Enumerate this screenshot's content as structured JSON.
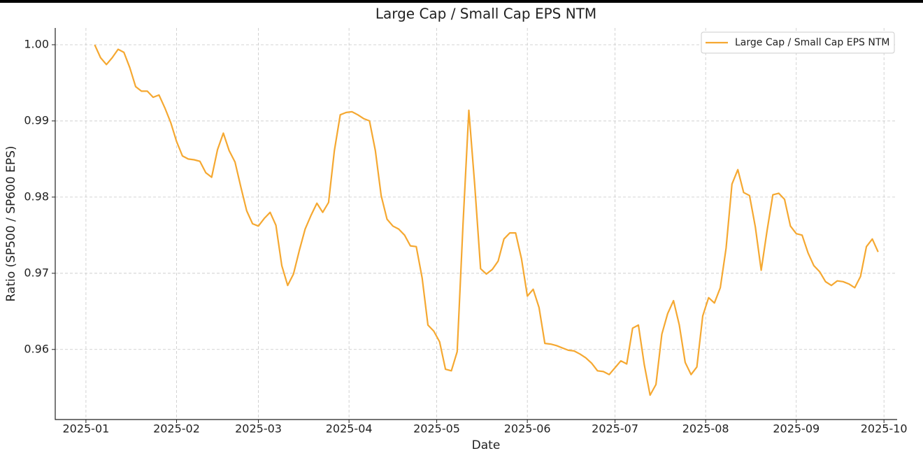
{
  "chart_data": {
    "type": "line",
    "title": "Large Cap / Small Cap EPS NTM",
    "x_label": "Date",
    "y_label": "Ratio (SP500 / SP600 EPS)",
    "x": [
      3,
      5,
      7,
      9,
      11,
      13,
      15,
      17,
      19,
      21,
      23,
      25,
      27,
      29,
      31,
      33,
      35,
      37,
      39,
      41,
      43,
      45,
      47,
      49,
      51,
      53,
      55,
      57,
      59,
      61,
      63,
      65,
      67,
      69,
      71,
      73,
      75,
      77,
      79,
      81,
      83,
      85,
      87,
      89,
      91,
      93,
      95,
      97,
      99,
      101,
      103,
      105,
      107,
      109,
      111,
      113,
      115,
      117,
      119,
      121,
      123,
      125,
      127,
      129,
      131,
      133,
      135,
      137,
      139,
      141,
      143,
      145,
      147,
      149,
      151,
      153,
      155,
      157,
      159,
      161,
      163,
      165,
      167,
      169,
      171,
      173,
      175,
      177,
      179,
      181,
      183,
      185,
      187,
      189,
      191,
      193,
      195,
      197,
      199,
      201,
      203,
      205,
      207,
      209,
      211,
      213,
      215,
      217,
      219,
      221,
      223,
      225,
      227,
      229,
      231,
      233,
      235,
      237,
      239,
      241,
      243,
      245,
      247,
      249,
      251,
      253,
      255,
      257,
      259,
      261,
      263,
      265,
      267,
      269,
      271
    ],
    "series": [
      {
        "name": "Large Cap / Small Cap EPS NTM",
        "color": "#f5a831",
        "values": [
          1.0,
          0.9983,
          0.9974,
          0.9983,
          0.9994,
          0.999,
          0.997,
          0.9945,
          0.9939,
          0.9939,
          0.9931,
          0.9934,
          0.9917,
          0.9898,
          0.9873,
          0.9854,
          0.985,
          0.9849,
          0.9847,
          0.9832,
          0.9826,
          0.9862,
          0.9884,
          0.9861,
          0.9846,
          0.9813,
          0.9782,
          0.9765,
          0.9762,
          0.9772,
          0.978,
          0.9763,
          0.971,
          0.9684,
          0.9699,
          0.973,
          0.9758,
          0.9776,
          0.9792,
          0.978,
          0.9793,
          0.9861,
          0.9908,
          0.9911,
          0.9912,
          0.9908,
          0.9903,
          0.99,
          0.9861,
          0.9802,
          0.9771,
          0.9762,
          0.9758,
          0.975,
          0.9736,
          0.9735,
          0.9694,
          0.9632,
          0.9624,
          0.961,
          0.9574,
          0.9572,
          0.9597,
          0.9765,
          0.9914,
          0.9816,
          0.9706,
          0.9699,
          0.9705,
          0.9716,
          0.9745,
          0.9753,
          0.9753,
          0.9719,
          0.967,
          0.9679,
          0.9655,
          0.9608,
          0.9607,
          0.9605,
          0.9602,
          0.9599,
          0.9598,
          0.9594,
          0.9589,
          0.9582,
          0.9572,
          0.9571,
          0.9567,
          0.9576,
          0.9585,
          0.9581,
          0.9628,
          0.9632,
          0.958,
          0.954,
          0.9554,
          0.962,
          0.9647,
          0.9664,
          0.9632,
          0.9583,
          0.9567,
          0.9577,
          0.9644,
          0.9668,
          0.9661,
          0.9681,
          0.9733,
          0.9817,
          0.9836,
          0.9806,
          0.9802,
          0.9761,
          0.9704,
          0.9756,
          0.9803,
          0.9805,
          0.9797,
          0.9762,
          0.9752,
          0.975,
          0.9727,
          0.971,
          0.9702,
          0.9689,
          0.9684,
          0.969,
          0.9689,
          0.9686,
          0.9681,
          0.9696,
          0.9735,
          0.9745,
          0.9728
        ]
      }
    ],
    "xlim": [
      -10.5,
      277.5
    ],
    "xticks": [
      {
        "value": 0,
        "label": "2025-01"
      },
      {
        "value": 31,
        "label": "2025-02"
      },
      {
        "value": 59,
        "label": "2025-03"
      },
      {
        "value": 90,
        "label": "2025-04"
      },
      {
        "value": 120,
        "label": "2025-05"
      },
      {
        "value": 151,
        "label": "2025-06"
      },
      {
        "value": 181,
        "label": "2025-07"
      },
      {
        "value": 212,
        "label": "2025-08"
      },
      {
        "value": 243,
        "label": "2025-09"
      },
      {
        "value": 273,
        "label": "2025-10"
      }
    ],
    "ylim": [
      0.9508,
      1.0022
    ],
    "yticks": [
      0.96,
      0.97,
      0.98,
      0.99,
      {
        "value": 1,
        "label": "1.00"
      }
    ],
    "grid": true,
    "legend": "upper right"
  }
}
